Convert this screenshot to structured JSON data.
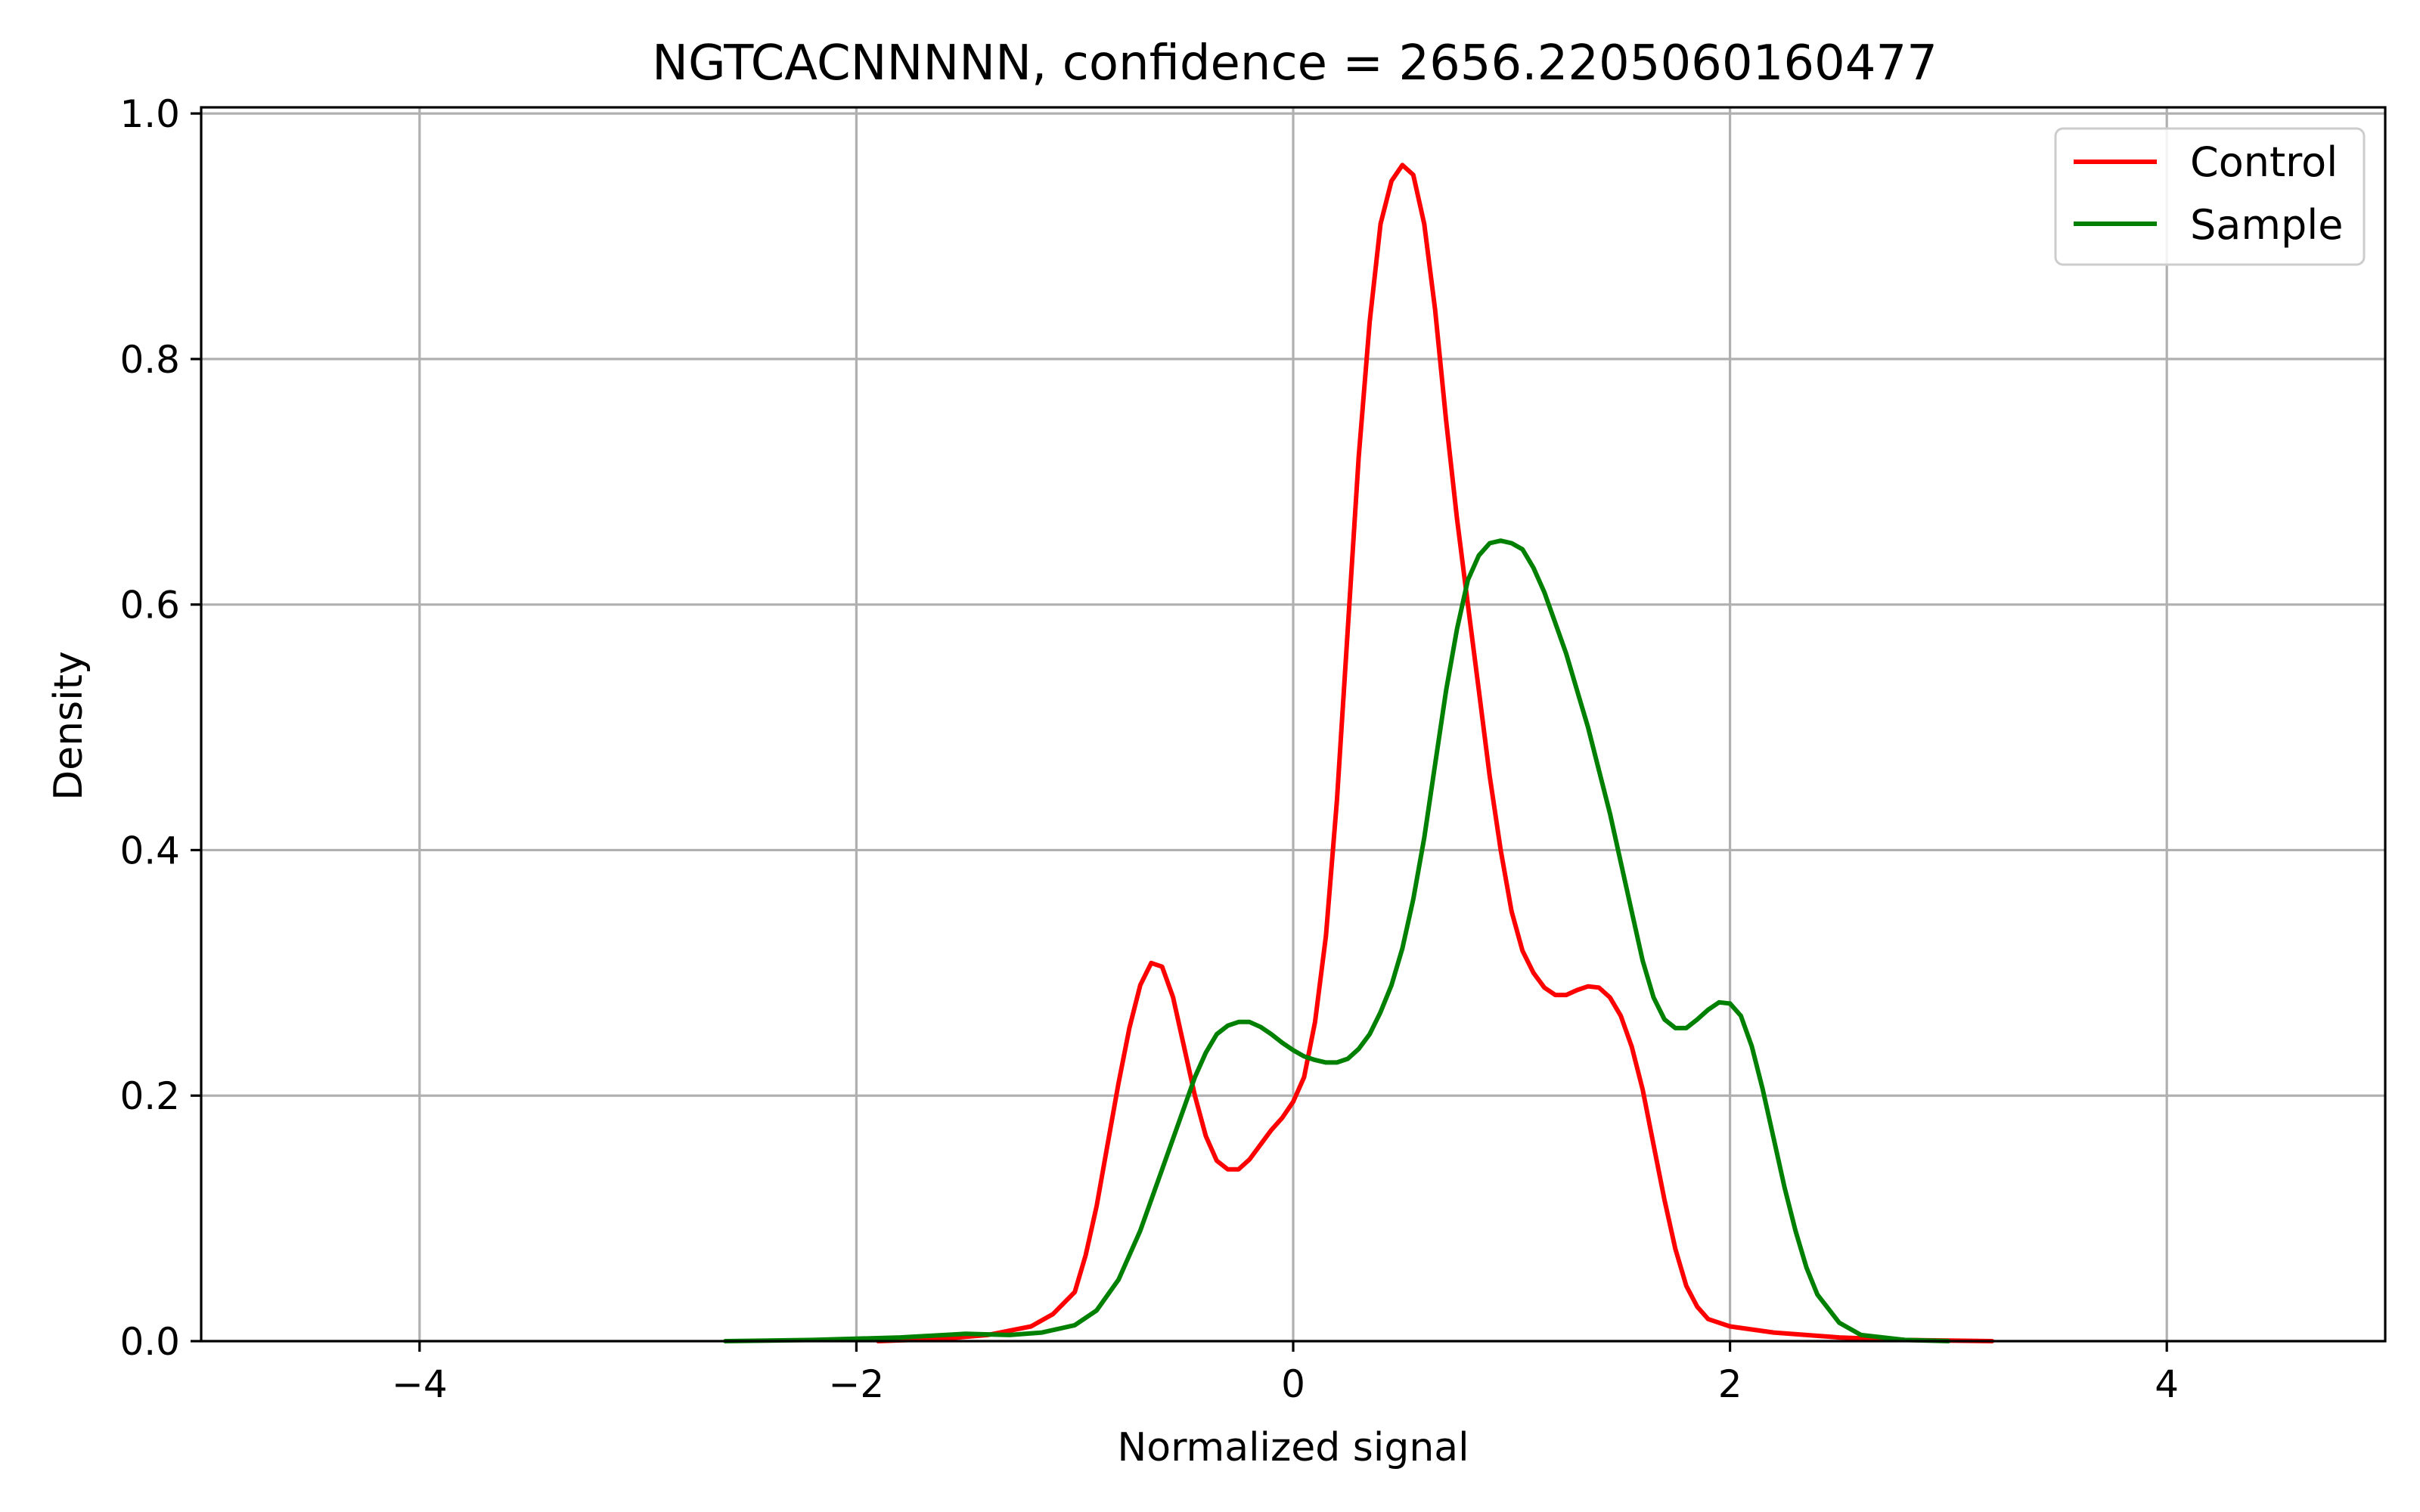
{
  "chart_data": {
    "type": "line",
    "title": "NGTCACNNNNN, confidence = 2656.2205060160477",
    "xlabel": "Normalized signal",
    "ylabel": "Density",
    "xlim": [
      -5,
      5
    ],
    "ylim": [
      0,
      1.005
    ],
    "xticks": [
      -4,
      -2,
      0,
      2,
      4
    ],
    "xtick_labels": [
      "−4",
      "−2",
      "0",
      "2",
      "4"
    ],
    "yticks": [
      0.0,
      0.2,
      0.4,
      0.6,
      0.8,
      1.0
    ],
    "ytick_labels": [
      "0.0",
      "0.2",
      "0.4",
      "0.6",
      "0.8",
      "1.0"
    ],
    "grid": true,
    "legend_position": "top-right",
    "series": [
      {
        "name": "Control",
        "color": "#ff0000",
        "points": [
          [
            -1.9,
            0.0
          ],
          [
            -1.6,
            0.002
          ],
          [
            -1.4,
            0.005
          ],
          [
            -1.2,
            0.012
          ],
          [
            -1.1,
            0.022
          ],
          [
            -1.0,
            0.04
          ],
          [
            -0.95,
            0.07
          ],
          [
            -0.9,
            0.11
          ],
          [
            -0.85,
            0.16
          ],
          [
            -0.8,
            0.21
          ],
          [
            -0.75,
            0.255
          ],
          [
            -0.7,
            0.29
          ],
          [
            -0.65,
            0.308
          ],
          [
            -0.6,
            0.305
          ],
          [
            -0.55,
            0.28
          ],
          [
            -0.5,
            0.24
          ],
          [
            -0.45,
            0.2
          ],
          [
            -0.4,
            0.167
          ],
          [
            -0.35,
            0.147
          ],
          [
            -0.3,
            0.14
          ],
          [
            -0.25,
            0.14
          ],
          [
            -0.2,
            0.148
          ],
          [
            -0.15,
            0.16
          ],
          [
            -0.1,
            0.172
          ],
          [
            -0.05,
            0.182
          ],
          [
            0.0,
            0.195
          ],
          [
            0.05,
            0.215
          ],
          [
            0.1,
            0.26
          ],
          [
            0.15,
            0.33
          ],
          [
            0.2,
            0.44
          ],
          [
            0.25,
            0.58
          ],
          [
            0.3,
            0.72
          ],
          [
            0.35,
            0.83
          ],
          [
            0.4,
            0.91
          ],
          [
            0.45,
            0.945
          ],
          [
            0.5,
            0.958
          ],
          [
            0.55,
            0.95
          ],
          [
            0.6,
            0.91
          ],
          [
            0.65,
            0.84
          ],
          [
            0.7,
            0.75
          ],
          [
            0.75,
            0.67
          ],
          [
            0.8,
            0.6
          ],
          [
            0.85,
            0.53
          ],
          [
            0.9,
            0.46
          ],
          [
            0.95,
            0.4
          ],
          [
            1.0,
            0.35
          ],
          [
            1.05,
            0.318
          ],
          [
            1.1,
            0.3
          ],
          [
            1.15,
            0.288
          ],
          [
            1.2,
            0.282
          ],
          [
            1.25,
            0.282
          ],
          [
            1.3,
            0.286
          ],
          [
            1.35,
            0.289
          ],
          [
            1.4,
            0.288
          ],
          [
            1.45,
            0.28
          ],
          [
            1.5,
            0.265
          ],
          [
            1.55,
            0.24
          ],
          [
            1.6,
            0.205
          ],
          [
            1.65,
            0.16
          ],
          [
            1.7,
            0.115
          ],
          [
            1.75,
            0.075
          ],
          [
            1.8,
            0.045
          ],
          [
            1.85,
            0.028
          ],
          [
            1.9,
            0.018
          ],
          [
            2.0,
            0.012
          ],
          [
            2.2,
            0.007
          ],
          [
            2.5,
            0.003
          ],
          [
            2.8,
            0.001
          ],
          [
            3.2,
            0.0
          ]
        ]
      },
      {
        "name": "Sample",
        "color": "#008000",
        "points": [
          [
            -2.6,
            0.0
          ],
          [
            -2.2,
            0.001
          ],
          [
            -1.8,
            0.003
          ],
          [
            -1.5,
            0.006
          ],
          [
            -1.3,
            0.005
          ],
          [
            -1.15,
            0.007
          ],
          [
            -1.0,
            0.013
          ],
          [
            -0.9,
            0.025
          ],
          [
            -0.8,
            0.05
          ],
          [
            -0.7,
            0.09
          ],
          [
            -0.6,
            0.14
          ],
          [
            -0.5,
            0.19
          ],
          [
            -0.45,
            0.215
          ],
          [
            -0.4,
            0.235
          ],
          [
            -0.35,
            0.25
          ],
          [
            -0.3,
            0.257
          ],
          [
            -0.25,
            0.26
          ],
          [
            -0.2,
            0.26
          ],
          [
            -0.15,
            0.256
          ],
          [
            -0.1,
            0.25
          ],
          [
            -0.05,
            0.243
          ],
          [
            0.0,
            0.237
          ],
          [
            0.05,
            0.232
          ],
          [
            0.1,
            0.229
          ],
          [
            0.15,
            0.227
          ],
          [
            0.2,
            0.227
          ],
          [
            0.25,
            0.23
          ],
          [
            0.3,
            0.238
          ],
          [
            0.35,
            0.25
          ],
          [
            0.4,
            0.268
          ],
          [
            0.45,
            0.29
          ],
          [
            0.5,
            0.32
          ],
          [
            0.55,
            0.36
          ],
          [
            0.6,
            0.41
          ],
          [
            0.65,
            0.47
          ],
          [
            0.7,
            0.53
          ],
          [
            0.75,
            0.58
          ],
          [
            0.8,
            0.62
          ],
          [
            0.85,
            0.64
          ],
          [
            0.9,
            0.65
          ],
          [
            0.95,
            0.652
          ],
          [
            1.0,
            0.65
          ],
          [
            1.05,
            0.645
          ],
          [
            1.1,
            0.63
          ],
          [
            1.15,
            0.61
          ],
          [
            1.2,
            0.585
          ],
          [
            1.25,
            0.56
          ],
          [
            1.3,
            0.53
          ],
          [
            1.35,
            0.5
          ],
          [
            1.4,
            0.465
          ],
          [
            1.45,
            0.43
          ],
          [
            1.5,
            0.39
          ],
          [
            1.55,
            0.35
          ],
          [
            1.6,
            0.31
          ],
          [
            1.65,
            0.28
          ],
          [
            1.7,
            0.262
          ],
          [
            1.75,
            0.255
          ],
          [
            1.8,
            0.255
          ],
          [
            1.85,
            0.262
          ],
          [
            1.9,
            0.27
          ],
          [
            1.95,
            0.276
          ],
          [
            2.0,
            0.275
          ],
          [
            2.05,
            0.265
          ],
          [
            2.1,
            0.24
          ],
          [
            2.15,
            0.205
          ],
          [
            2.2,
            0.165
          ],
          [
            2.25,
            0.125
          ],
          [
            2.3,
            0.09
          ],
          [
            2.35,
            0.06
          ],
          [
            2.4,
            0.038
          ],
          [
            2.5,
            0.015
          ],
          [
            2.6,
            0.005
          ],
          [
            2.8,
            0.001
          ],
          [
            3.0,
            0.0
          ]
        ]
      }
    ]
  }
}
